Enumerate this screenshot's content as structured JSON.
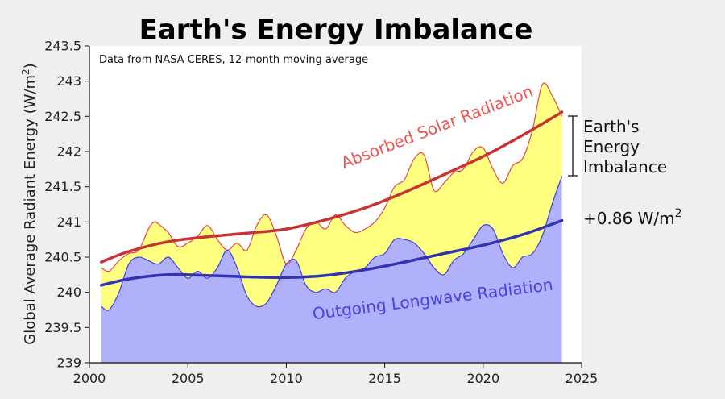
{
  "chart_data": {
    "type": "area",
    "title": "Earth's Energy Imbalance",
    "note": "Data from NASA CERES, 12-month moving average",
    "xlabel": "",
    "ylabel": "Global Average Radiant Energy (W/m",
    "ylabel_sup": "2",
    "ylabel_close": ")",
    "xlim": [
      2000,
      2025
    ],
    "ylim": [
      239,
      243.5
    ],
    "x_ticks": [
      2000,
      2005,
      2010,
      2015,
      2020,
      2025
    ],
    "x_tick_labels": [
      "2000",
      "2005",
      "2010",
      "2015",
      "2020",
      "2025"
    ],
    "y_ticks": [
      239,
      239.5,
      240,
      240.5,
      241,
      241.5,
      242,
      242.5,
      243,
      243.5
    ],
    "y_tick_labels": [
      "239",
      "239.5",
      "240",
      "240.5",
      "241",
      "241.5",
      "242",
      "242.5",
      "243",
      "243.5"
    ],
    "series": [
      {
        "name": "Absorbed Solar Radiation",
        "color": "#e8474a",
        "fill": "#ffff80",
        "x": [
          2000.6,
          2001.0,
          2001.5,
          2002.0,
          2002.5,
          2003.0,
          2003.3,
          2003.6,
          2004.0,
          2004.5,
          2005.0,
          2005.5,
          2006.0,
          2006.5,
          2007.0,
          2007.5,
          2008.0,
          2008.5,
          2009.0,
          2009.5,
          2010.0,
          2010.5,
          2011.0,
          2011.5,
          2012.0,
          2012.5,
          2013.0,
          2013.5,
          2014.0,
          2014.5,
          2015.0,
          2015.5,
          2016.0,
          2016.5,
          2017.0,
          2017.5,
          2018.0,
          2018.5,
          2019.0,
          2019.5,
          2020.0,
          2020.5,
          2021.0,
          2021.5,
          2022.0,
          2022.5,
          2023.0,
          2023.5,
          2024.0
        ],
        "values": [
          240.35,
          240.3,
          240.45,
          240.55,
          240.6,
          240.9,
          241.0,
          240.95,
          240.85,
          240.65,
          240.7,
          240.8,
          240.95,
          240.75,
          240.6,
          240.7,
          240.6,
          240.95,
          241.1,
          240.8,
          240.4,
          240.6,
          240.9,
          241.0,
          240.9,
          241.1,
          240.95,
          240.85,
          240.9,
          241.0,
          241.2,
          241.5,
          241.6,
          241.9,
          241.95,
          241.45,
          241.55,
          241.7,
          241.75,
          242.0,
          242.05,
          241.75,
          241.55,
          241.8,
          241.9,
          242.3,
          242.95,
          242.8,
          242.5
        ]
      },
      {
        "name": "Outgoing Longwave Radiation",
        "color": "#3f3fe0",
        "fill": "#b0b0fb",
        "x": [
          2000.6,
          2001.0,
          2001.5,
          2002.0,
          2002.5,
          2003.0,
          2003.5,
          2004.0,
          2004.5,
          2005.0,
          2005.5,
          2006.0,
          2006.5,
          2007.0,
          2007.5,
          2008.0,
          2008.5,
          2009.0,
          2009.5,
          2010.0,
          2010.5,
          2011.0,
          2011.5,
          2012.0,
          2012.5,
          2013.0,
          2013.5,
          2014.0,
          2014.5,
          2015.0,
          2015.5,
          2016.0,
          2016.5,
          2017.0,
          2017.5,
          2018.0,
          2018.5,
          2019.0,
          2019.5,
          2020.0,
          2020.5,
          2021.0,
          2021.5,
          2022.0,
          2022.5,
          2023.0,
          2023.5,
          2024.0
        ],
        "values": [
          239.8,
          239.75,
          240.0,
          240.4,
          240.5,
          240.45,
          240.4,
          240.5,
          240.35,
          240.2,
          240.3,
          240.2,
          240.35,
          240.6,
          240.35,
          239.95,
          239.8,
          239.85,
          240.1,
          240.4,
          240.45,
          240.1,
          240.0,
          240.05,
          240.0,
          240.2,
          240.3,
          240.35,
          240.5,
          240.55,
          240.75,
          240.75,
          240.7,
          240.55,
          240.35,
          240.25,
          240.45,
          240.55,
          240.75,
          240.95,
          240.9,
          240.55,
          240.35,
          240.5,
          240.55,
          240.8,
          241.25,
          241.65
        ]
      }
    ],
    "trends": [
      {
        "name": "Absorbed Solar Radiation trend",
        "color": "#c83232",
        "x": [
          2000.6,
          2002.0,
          2004.0,
          2006.0,
          2008.0,
          2010.0,
          2012.0,
          2014.0,
          2016.0,
          2018.0,
          2020.0,
          2022.0,
          2024.0
        ],
        "values": [
          240.43,
          240.58,
          240.72,
          240.79,
          240.84,
          240.9,
          241.03,
          241.2,
          241.42,
          241.67,
          241.93,
          242.23,
          242.56
        ]
      },
      {
        "name": "Outgoing Longwave Radiation trend",
        "color": "#3232b4",
        "x": [
          2000.6,
          2002.0,
          2004.0,
          2006.0,
          2008.0,
          2010.0,
          2012.0,
          2014.0,
          2016.0,
          2018.0,
          2020.0,
          2022.0,
          2024.0
        ],
        "values": [
          240.1,
          240.19,
          240.25,
          240.24,
          240.22,
          240.21,
          240.24,
          240.32,
          240.43,
          240.55,
          240.67,
          240.82,
          241.02
        ]
      }
    ],
    "imbalance_label": [
      "Earth's",
      "Energy",
      "Imbalance"
    ],
    "imbalance_value": "+0.86 W/m",
    "imbalance_value_sup": "2"
  }
}
